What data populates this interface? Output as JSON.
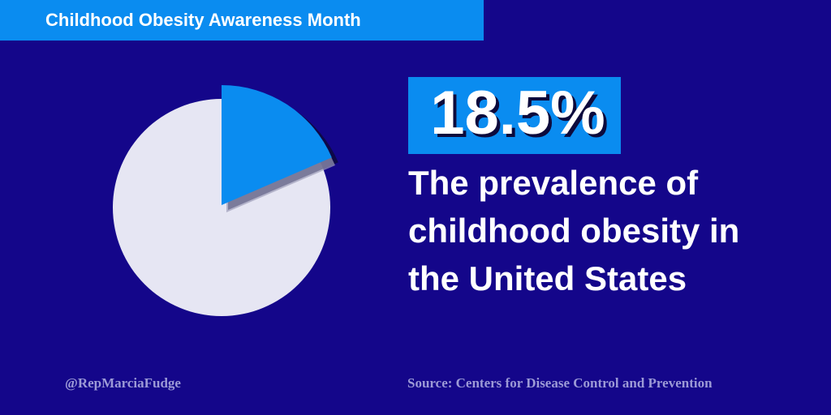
{
  "chart_data": {
    "type": "pie",
    "title": "Childhood Obesity Awareness Month",
    "values": [
      18.5
    ],
    "value_labels": [
      "18.5%"
    ],
    "color": "#0a8cf0",
    "description": [
      "The prevalence of",
      "childhood obesity in",
      "the United States"
    ],
    "handle": "@RepMarciaFudge",
    "source": "Source: Centers for Disease Control and Prevention"
  }
}
